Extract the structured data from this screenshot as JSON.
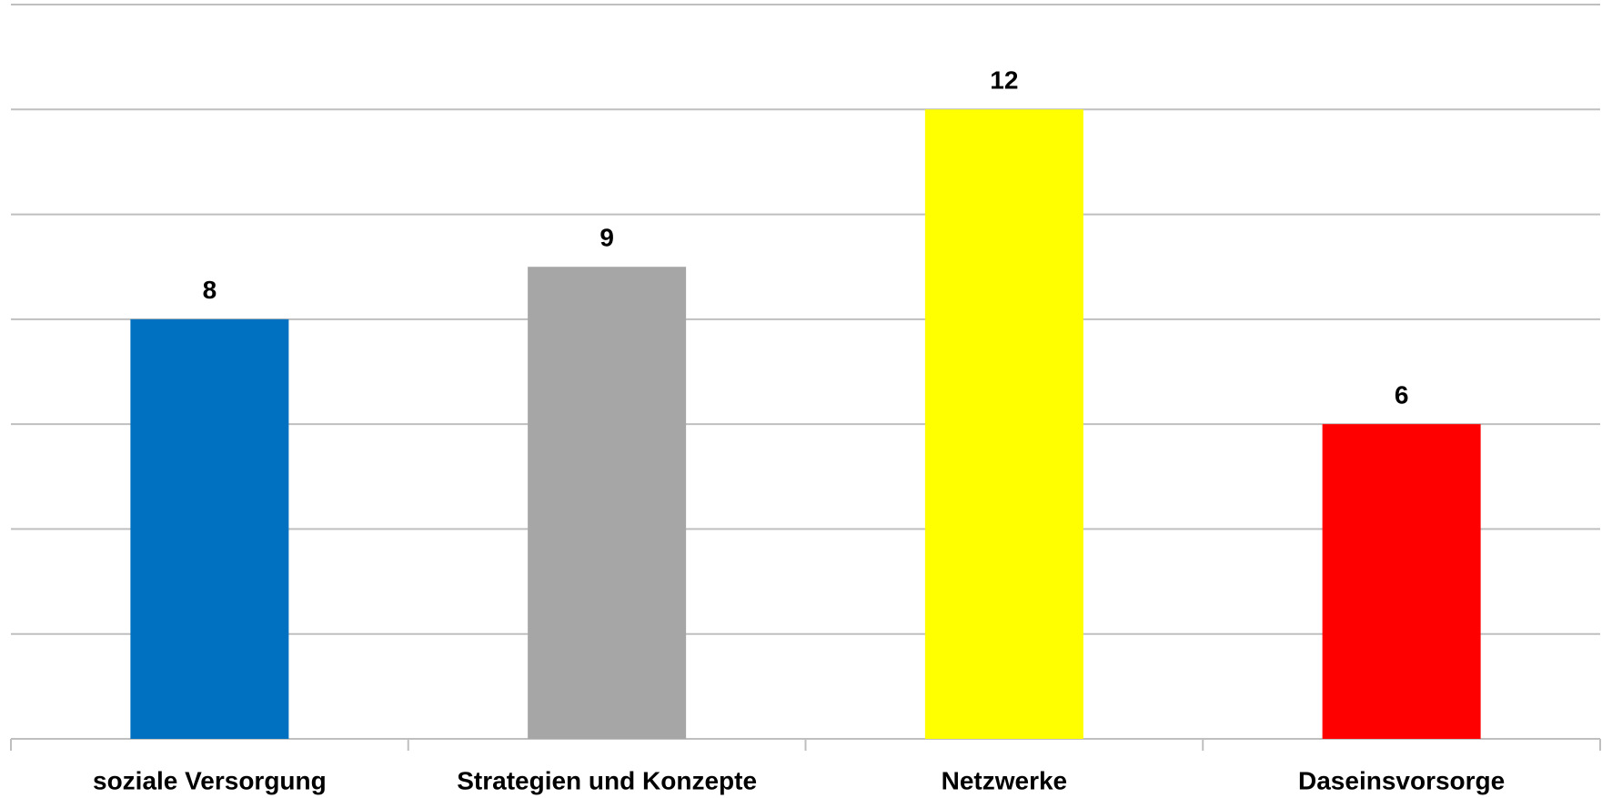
{
  "chart_data": {
    "type": "bar",
    "categories": [
      "soziale Versorgung",
      "Strategien und Konzepte",
      "Netzwerke",
      "Daseinsvorsorge"
    ],
    "values": [
      8,
      9,
      12,
      6
    ],
    "colors": [
      "#0070c0",
      "#a6a6a6",
      "#ffff00",
      "#ff0000"
    ],
    "ylim": [
      0,
      14
    ],
    "yticks": [
      0,
      2,
      4,
      6,
      8,
      10,
      12,
      14
    ],
    "grid": true
  }
}
